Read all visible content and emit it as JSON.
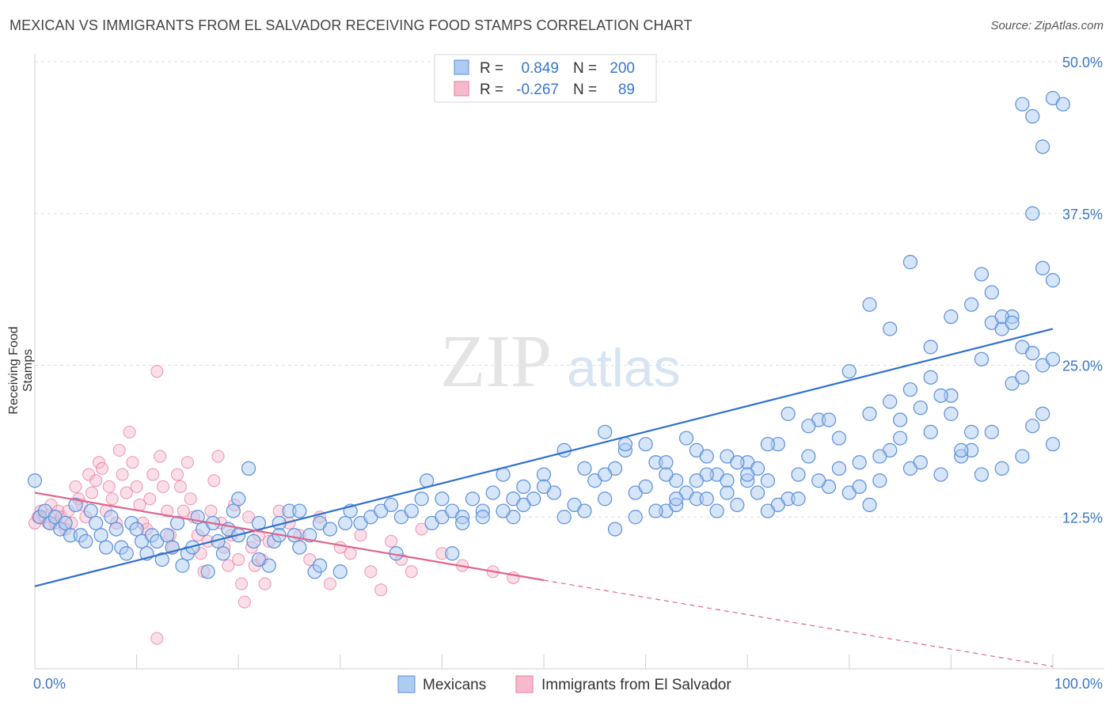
{
  "title": "MEXICAN VS IMMIGRANTS FROM EL SALVADOR RECEIVING FOOD STAMPS CORRELATION CHART",
  "source": "Source: ZipAtlas.com",
  "watermark": {
    "zip": "ZIP",
    "atlas": "atlas"
  },
  "colors": {
    "blue": "#5b8fd9",
    "blue_fill": "#aecbf1",
    "blue_line": "#2f6fcf",
    "pink": "#e87a9b",
    "pink_fill": "#f7b9cb",
    "pink_line": "#e0648a",
    "axis_text": "#3a76c8"
  },
  "legend": {
    "rows": [
      {
        "r_label": "R =",
        "r_value": "0.849",
        "n_label": "N =",
        "n_value": "200"
      },
      {
        "r_label": "R =",
        "r_value": "-0.267",
        "n_label": "N =",
        "n_value": "89"
      }
    ]
  },
  "chart_data": {
    "type": "scatter",
    "title": "MEXICAN VS IMMIGRANTS FROM EL SALVADOR RECEIVING FOOD STAMPS CORRELATION CHART",
    "ylabel": "Receiving Food Stamps",
    "xlabel": "",
    "xlim": [
      0,
      100
    ],
    "ylim": [
      0,
      50
    ],
    "x_tick_labels": [
      "0.0%",
      "100.0%"
    ],
    "y_ticks": [
      12.5,
      25.0,
      37.5,
      50.0
    ],
    "y_tick_labels": [
      "12.5%",
      "25.0%",
      "37.5%",
      "50.0%"
    ],
    "grid": true,
    "legend_position": "bottom",
    "series": [
      {
        "name": "Mexicans",
        "r": 0.849,
        "n": 200,
        "trend": [
          [
            0,
            6.8
          ],
          [
            100,
            28.0
          ]
        ],
        "points": [
          [
            0,
            15.5
          ],
          [
            0.5,
            12.5
          ],
          [
            1,
            13
          ],
          [
            1.5,
            12
          ],
          [
            2,
            12.5
          ],
          [
            2.5,
            11.5
          ],
          [
            3,
            12
          ],
          [
            3.5,
            11
          ],
          [
            4,
            13.5
          ],
          [
            4.5,
            11
          ],
          [
            5,
            10.5
          ],
          [
            5.5,
            13
          ],
          [
            6,
            12
          ],
          [
            6.5,
            11
          ],
          [
            7,
            10
          ],
          [
            7.5,
            12.5
          ],
          [
            8,
            11.5
          ],
          [
            8.5,
            10
          ],
          [
            9,
            9.5
          ],
          [
            9.5,
            12
          ],
          [
            10,
            11.5
          ],
          [
            10.5,
            10.5
          ],
          [
            11,
            9.5
          ],
          [
            11.5,
            11
          ],
          [
            12,
            10.5
          ],
          [
            12.5,
            9
          ],
          [
            13,
            11
          ],
          [
            13.5,
            10
          ],
          [
            14,
            12
          ],
          [
            14.5,
            8.5
          ],
          [
            15,
            9.5
          ],
          [
            15.5,
            10
          ],
          [
            16,
            12.5
          ],
          [
            16.5,
            11.5
          ],
          [
            17,
            8
          ],
          [
            17.5,
            12
          ],
          [
            18,
            10.5
          ],
          [
            18.5,
            9.5
          ],
          [
            19,
            11.5
          ],
          [
            19.5,
            13
          ],
          [
            20,
            11
          ],
          [
            21,
            16.5
          ],
          [
            21.5,
            10.5
          ],
          [
            22,
            12
          ],
          [
            23,
            8.5
          ],
          [
            23.5,
            10.5
          ],
          [
            24,
            12
          ],
          [
            25,
            13
          ],
          [
            25.5,
            11
          ],
          [
            26,
            10
          ],
          [
            27,
            11
          ],
          [
            27.5,
            8
          ],
          [
            28,
            12
          ],
          [
            29,
            11.5
          ],
          [
            30,
            8
          ],
          [
            30.5,
            12
          ],
          [
            31,
            13
          ],
          [
            32,
            12
          ],
          [
            33,
            12.5
          ],
          [
            34,
            13
          ],
          [
            35,
            13.5
          ],
          [
            35.5,
            9.5
          ],
          [
            36,
            12.5
          ],
          [
            37,
            13
          ],
          [
            38,
            14
          ],
          [
            38.5,
            15.5
          ],
          [
            39,
            12
          ],
          [
            40,
            12.5
          ],
          [
            41,
            13
          ],
          [
            42,
            12.5
          ],
          [
            43,
            14
          ],
          [
            44,
            13
          ],
          [
            45,
            14.5
          ],
          [
            46,
            16
          ],
          [
            47,
            12.5
          ],
          [
            48,
            15
          ],
          [
            49,
            14
          ],
          [
            50,
            16
          ],
          [
            51,
            14.5
          ],
          [
            52,
            18
          ],
          [
            53,
            13.5
          ],
          [
            54,
            16.5
          ],
          [
            55,
            15.5
          ],
          [
            56,
            14
          ],
          [
            57,
            16.5
          ],
          [
            58,
            18
          ],
          [
            59,
            14.5
          ],
          [
            60,
            15
          ],
          [
            61,
            17
          ],
          [
            62,
            13
          ],
          [
            63,
            15.5
          ],
          [
            64,
            14.5
          ],
          [
            65,
            18
          ],
          [
            66,
            17.5
          ],
          [
            67,
            16
          ],
          [
            68,
            15.5
          ],
          [
            69,
            13.5
          ],
          [
            70,
            17
          ],
          [
            71,
            16.5
          ],
          [
            72,
            15.5
          ],
          [
            73,
            18.5
          ],
          [
            74,
            14
          ],
          [
            75,
            16
          ],
          [
            76,
            17.5
          ],
          [
            77,
            20.5
          ],
          [
            78,
            15
          ],
          [
            79,
            19
          ],
          [
            80,
            14.5
          ],
          [
            81,
            17
          ],
          [
            82,
            13.5
          ],
          [
            83,
            15.5
          ],
          [
            84,
            18
          ],
          [
            85,
            20.5
          ],
          [
            86,
            16.5
          ],
          [
            87,
            17
          ],
          [
            88,
            19.5
          ],
          [
            89,
            16
          ],
          [
            90,
            21
          ],
          [
            91,
            17.5
          ],
          [
            92,
            18
          ],
          [
            93,
            16
          ],
          [
            94,
            19.5
          ],
          [
            95,
            16.5
          ],
          [
            96,
            23.5
          ],
          [
            97,
            17.5
          ],
          [
            98,
            20
          ],
          [
            99,
            21
          ],
          [
            100,
            18.5
          ],
          [
            56,
            19.5
          ],
          [
            58,
            18.5
          ],
          [
            60,
            18.5
          ],
          [
            62,
            17
          ],
          [
            64,
            19
          ],
          [
            66,
            16
          ],
          [
            68,
            17.5
          ],
          [
            70,
            15.5
          ],
          [
            72,
            18.5
          ],
          [
            74,
            21
          ],
          [
            76,
            20
          ],
          [
            78,
            20.5
          ],
          [
            80,
            24.5
          ],
          [
            82,
            21
          ],
          [
            84,
            22
          ],
          [
            86,
            23
          ],
          [
            88,
            24
          ],
          [
            90,
            22.5
          ],
          [
            92,
            19.5
          ],
          [
            93,
            25.5
          ],
          [
            94,
            28.5
          ],
          [
            95,
            28
          ],
          [
            96,
            29
          ],
          [
            97,
            26.5
          ],
          [
            98,
            26
          ],
          [
            99,
            25
          ],
          [
            100,
            25.5
          ],
          [
            82,
            30
          ],
          [
            84,
            28
          ],
          [
            86,
            33.5
          ],
          [
            88,
            26.5
          ],
          [
            90,
            29
          ],
          [
            92,
            30
          ],
          [
            93,
            32.5
          ],
          [
            94,
            31
          ],
          [
            95,
            29
          ],
          [
            96,
            28.5
          ],
          [
            97,
            24
          ],
          [
            98,
            37.5
          ],
          [
            99,
            33
          ],
          [
            100,
            32
          ],
          [
            97,
            46.5
          ],
          [
            98,
            45.5
          ],
          [
            99,
            43
          ],
          [
            100,
            47
          ],
          [
            101,
            46.5
          ],
          [
            62,
            16
          ],
          [
            63,
            13.5
          ],
          [
            65,
            14
          ],
          [
            67,
            13
          ],
          [
            69,
            17
          ],
          [
            71,
            14.5
          ],
          [
            73,
            13.5
          ],
          [
            75,
            14
          ],
          [
            77,
            15.5
          ],
          [
            79,
            16.5
          ],
          [
            81,
            15
          ],
          [
            83,
            17.5
          ],
          [
            85,
            19
          ],
          [
            87,
            21.5
          ],
          [
            89,
            22.5
          ],
          [
            91,
            18
          ],
          [
            20,
            14
          ],
          [
            22,
            9
          ],
          [
            24,
            11
          ],
          [
            26,
            13
          ],
          [
            28,
            8.5
          ],
          [
            40,
            14
          ],
          [
            41,
            9.5
          ],
          [
            42,
            12
          ],
          [
            44,
            12.5
          ],
          [
            46,
            13
          ],
          [
            47,
            14
          ],
          [
            48,
            13.5
          ],
          [
            50,
            15
          ],
          [
            52,
            12.5
          ],
          [
            54,
            13
          ],
          [
            56,
            16
          ],
          [
            57,
            11.5
          ],
          [
            59,
            12.5
          ],
          [
            61,
            13
          ],
          [
            63,
            14
          ],
          [
            65,
            15.5
          ],
          [
            66,
            14
          ],
          [
            68,
            14.5
          ],
          [
            70,
            16
          ],
          [
            72,
            13
          ]
        ]
      },
      {
        "name": "Immigrants from El Salvador",
        "r": -0.267,
        "n": 89,
        "trend_solid": [
          [
            0,
            14.5
          ],
          [
            50,
            7.3
          ]
        ],
        "trend_dashed": [
          [
            50,
            7.3
          ],
          [
            100,
            0.2
          ]
        ],
        "points": [
          [
            0,
            12
          ],
          [
            0.3,
            12.5
          ],
          [
            0.6,
            13
          ],
          [
            1,
            12.5
          ],
          [
            1.3,
            12
          ],
          [
            1.6,
            13.5
          ],
          [
            2,
            12
          ],
          [
            2.3,
            13
          ],
          [
            2.6,
            12.5
          ],
          [
            3,
            11.5
          ],
          [
            3.3,
            13
          ],
          [
            3.6,
            12
          ],
          [
            4,
            15
          ],
          [
            4.3,
            14
          ],
          [
            4.6,
            13.5
          ],
          [
            5,
            12.5
          ],
          [
            5.3,
            16
          ],
          [
            5.6,
            14.5
          ],
          [
            6,
            15.5
          ],
          [
            6.3,
            17
          ],
          [
            6.6,
            16.5
          ],
          [
            7,
            13
          ],
          [
            7.3,
            15
          ],
          [
            7.6,
            14
          ],
          [
            8,
            12
          ],
          [
            8.3,
            18
          ],
          [
            8.6,
            16
          ],
          [
            9,
            14.5
          ],
          [
            9.3,
            19.5
          ],
          [
            9.6,
            17
          ],
          [
            10,
            15
          ],
          [
            10.3,
            13.5
          ],
          [
            10.6,
            12
          ],
          [
            11,
            11.5
          ],
          [
            11.3,
            14
          ],
          [
            11.6,
            16
          ],
          [
            12,
            24.5
          ],
          [
            12.3,
            17.5
          ],
          [
            12.6,
            15
          ],
          [
            13,
            13
          ],
          [
            13.3,
            11
          ],
          [
            13.6,
            10
          ],
          [
            14,
            16
          ],
          [
            14.3,
            15
          ],
          [
            14.6,
            13
          ],
          [
            15,
            17
          ],
          [
            15.3,
            14
          ],
          [
            15.6,
            12.5
          ],
          [
            16,
            11
          ],
          [
            16.3,
            9.5
          ],
          [
            16.6,
            8
          ],
          [
            17,
            10.5
          ],
          [
            17.3,
            13
          ],
          [
            17.6,
            15.5
          ],
          [
            18,
            17.5
          ],
          [
            18.3,
            12
          ],
          [
            18.6,
            10
          ],
          [
            19,
            8.5
          ],
          [
            19.3,
            11
          ],
          [
            19.6,
            13.5
          ],
          [
            20,
            9
          ],
          [
            20.3,
            7
          ],
          [
            20.6,
            5.5
          ],
          [
            21,
            12.5
          ],
          [
            21.3,
            10
          ],
          [
            21.6,
            8.5
          ],
          [
            22,
            11
          ],
          [
            22.3,
            9
          ],
          [
            22.6,
            7
          ],
          [
            23,
            10.5
          ],
          [
            24,
            13
          ],
          [
            25,
            12
          ],
          [
            26,
            11
          ],
          [
            27,
            9
          ],
          [
            28,
            12.5
          ],
          [
            29,
            7
          ],
          [
            30,
            10
          ],
          [
            31,
            9.5
          ],
          [
            32,
            11
          ],
          [
            33,
            8
          ],
          [
            34,
            6.5
          ],
          [
            35,
            10.5
          ],
          [
            36,
            9
          ],
          [
            37,
            8
          ],
          [
            38,
            11.5
          ],
          [
            40,
            9.5
          ],
          [
            42,
            8.5
          ],
          [
            45,
            8
          ],
          [
            47,
            7.5
          ],
          [
            12,
            2.5
          ]
        ]
      }
    ]
  }
}
